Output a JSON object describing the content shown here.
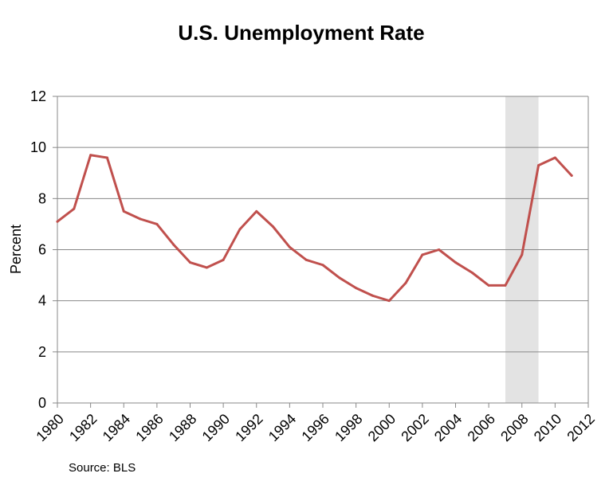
{
  "chart_data": {
    "type": "line",
    "title": "U.S. Unemployment Rate",
    "xlabel": "",
    "ylabel": "Percent",
    "source": "Source: BLS",
    "xlim": [
      1980,
      2012
    ],
    "ylim": [
      0,
      12
    ],
    "x_ticks": [
      1980,
      1982,
      1984,
      1986,
      1988,
      1990,
      1992,
      1994,
      1996,
      1998,
      2000,
      2002,
      2004,
      2006,
      2008,
      2010,
      2012
    ],
    "x_tick_labels": [
      "1980",
      "1982",
      "1984",
      "1986",
      "1988",
      "1990",
      "1992",
      "1994",
      "1996",
      "1998",
      "2000",
      "2002",
      "2004",
      "2006",
      "2008",
      "2010",
      "2012"
    ],
    "y_ticks": [
      0,
      2,
      4,
      6,
      8,
      10,
      12
    ],
    "y_tick_labels": [
      "0",
      "2",
      "4",
      "6",
      "8",
      "10",
      "12"
    ],
    "grid": "horizontal",
    "legend": "none",
    "shaded_regions": [
      {
        "x_start": 2007,
        "x_end": 2009
      }
    ],
    "series": [
      {
        "x": [
          1980,
          1981,
          1982,
          1983,
          1984,
          1985,
          1986,
          1987,
          1988,
          1989,
          1990,
          1991,
          1992,
          1993,
          1994,
          1995,
          1996,
          1997,
          1998,
          1999,
          2000,
          2001,
          2002,
          2003,
          2004,
          2005,
          2006,
          2007,
          2008,
          2009,
          2010,
          2011
        ],
        "values": [
          7.1,
          7.6,
          9.7,
          9.6,
          7.5,
          7.2,
          7.0,
          6.2,
          5.5,
          5.3,
          5.6,
          6.8,
          7.5,
          6.9,
          6.1,
          5.6,
          5.4,
          4.9,
          4.5,
          4.2,
          4.0,
          4.7,
          5.8,
          6.0,
          5.5,
          5.1,
          4.6,
          4.6,
          5.8,
          9.3,
          9.6,
          8.9
        ]
      }
    ],
    "colors": {
      "line": "#c0504d",
      "shade": "#e3e3e3",
      "grid": "#888888",
      "axis": "#888888"
    }
  }
}
